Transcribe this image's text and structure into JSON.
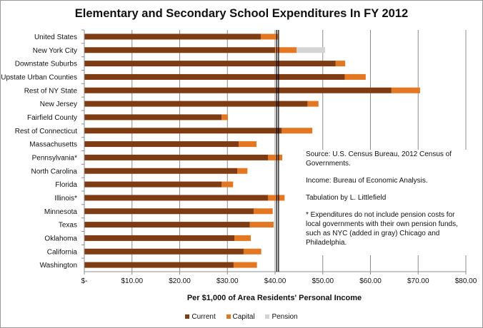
{
  "chart_data": {
    "type": "bar",
    "orientation": "horizontal",
    "stacked": true,
    "title": "Elementary and Secondary School Expenditures In FY 2012",
    "xlabel": "Per $1,000 of Area Residents' Personal Income",
    "ylabel": "",
    "xlim": [
      0,
      80
    ],
    "xticks": [
      0,
      10,
      20,
      30,
      40,
      50,
      60,
      70,
      80
    ],
    "xtick_labels": [
      "$-",
      "$10.00",
      "$20.00",
      "$30.00",
      "$40.00",
      "$50.00",
      "$60.00",
      "$70.00",
      "$80.00"
    ],
    "grid": true,
    "legend_position": "bottom",
    "reference_line": 40.5,
    "categories": [
      "United States",
      "New York City",
      "Downstate Suburbs",
      "Upstate Urban Counties",
      "Rest of NY State",
      "New Jersey",
      "Fairfield County",
      "Rest of Connecticut",
      "Massachusetts",
      "Pennsylvania*",
      "North Carolina",
      "Florida",
      "Illinois*",
      "Minnesota",
      "Texas",
      "Oklahoma",
      "California",
      "Washington"
    ],
    "series": [
      {
        "name": "Current",
        "color": "#7f3b12",
        "values": [
          37.0,
          40.0,
          52.7,
          54.6,
          64.4,
          46.8,
          28.8,
          41.4,
          32.4,
          38.5,
          32.1,
          28.8,
          38.5,
          35.5,
          34.7,
          31.5,
          33.4,
          31.3
        ]
      },
      {
        "name": "Capital",
        "color": "#e37722",
        "values": [
          3.6,
          4.5,
          2.0,
          4.4,
          6.0,
          2.3,
          1.3,
          6.4,
          3.7,
          3.0,
          2.1,
          2.4,
          3.5,
          4.0,
          5.0,
          3.4,
          3.7,
          4.9
        ]
      },
      {
        "name": "Pension",
        "color": "#d4d4d4",
        "values": [
          0,
          6.0,
          0,
          0,
          0,
          0,
          0,
          0,
          0,
          0,
          0,
          0,
          0,
          0,
          0,
          0,
          0,
          0
        ]
      }
    ],
    "annotation": [
      "Source:  U.S. Census Bureau, 2012 Census of Governments.",
      "Income:  Bureau of Economic Analysis.",
      "Tabulation by L. Littlefield",
      "* Expenditures do not include pension costs for local governments with their own pension funds, such as NYC (added in gray) Chicago and Philadelphia."
    ]
  }
}
